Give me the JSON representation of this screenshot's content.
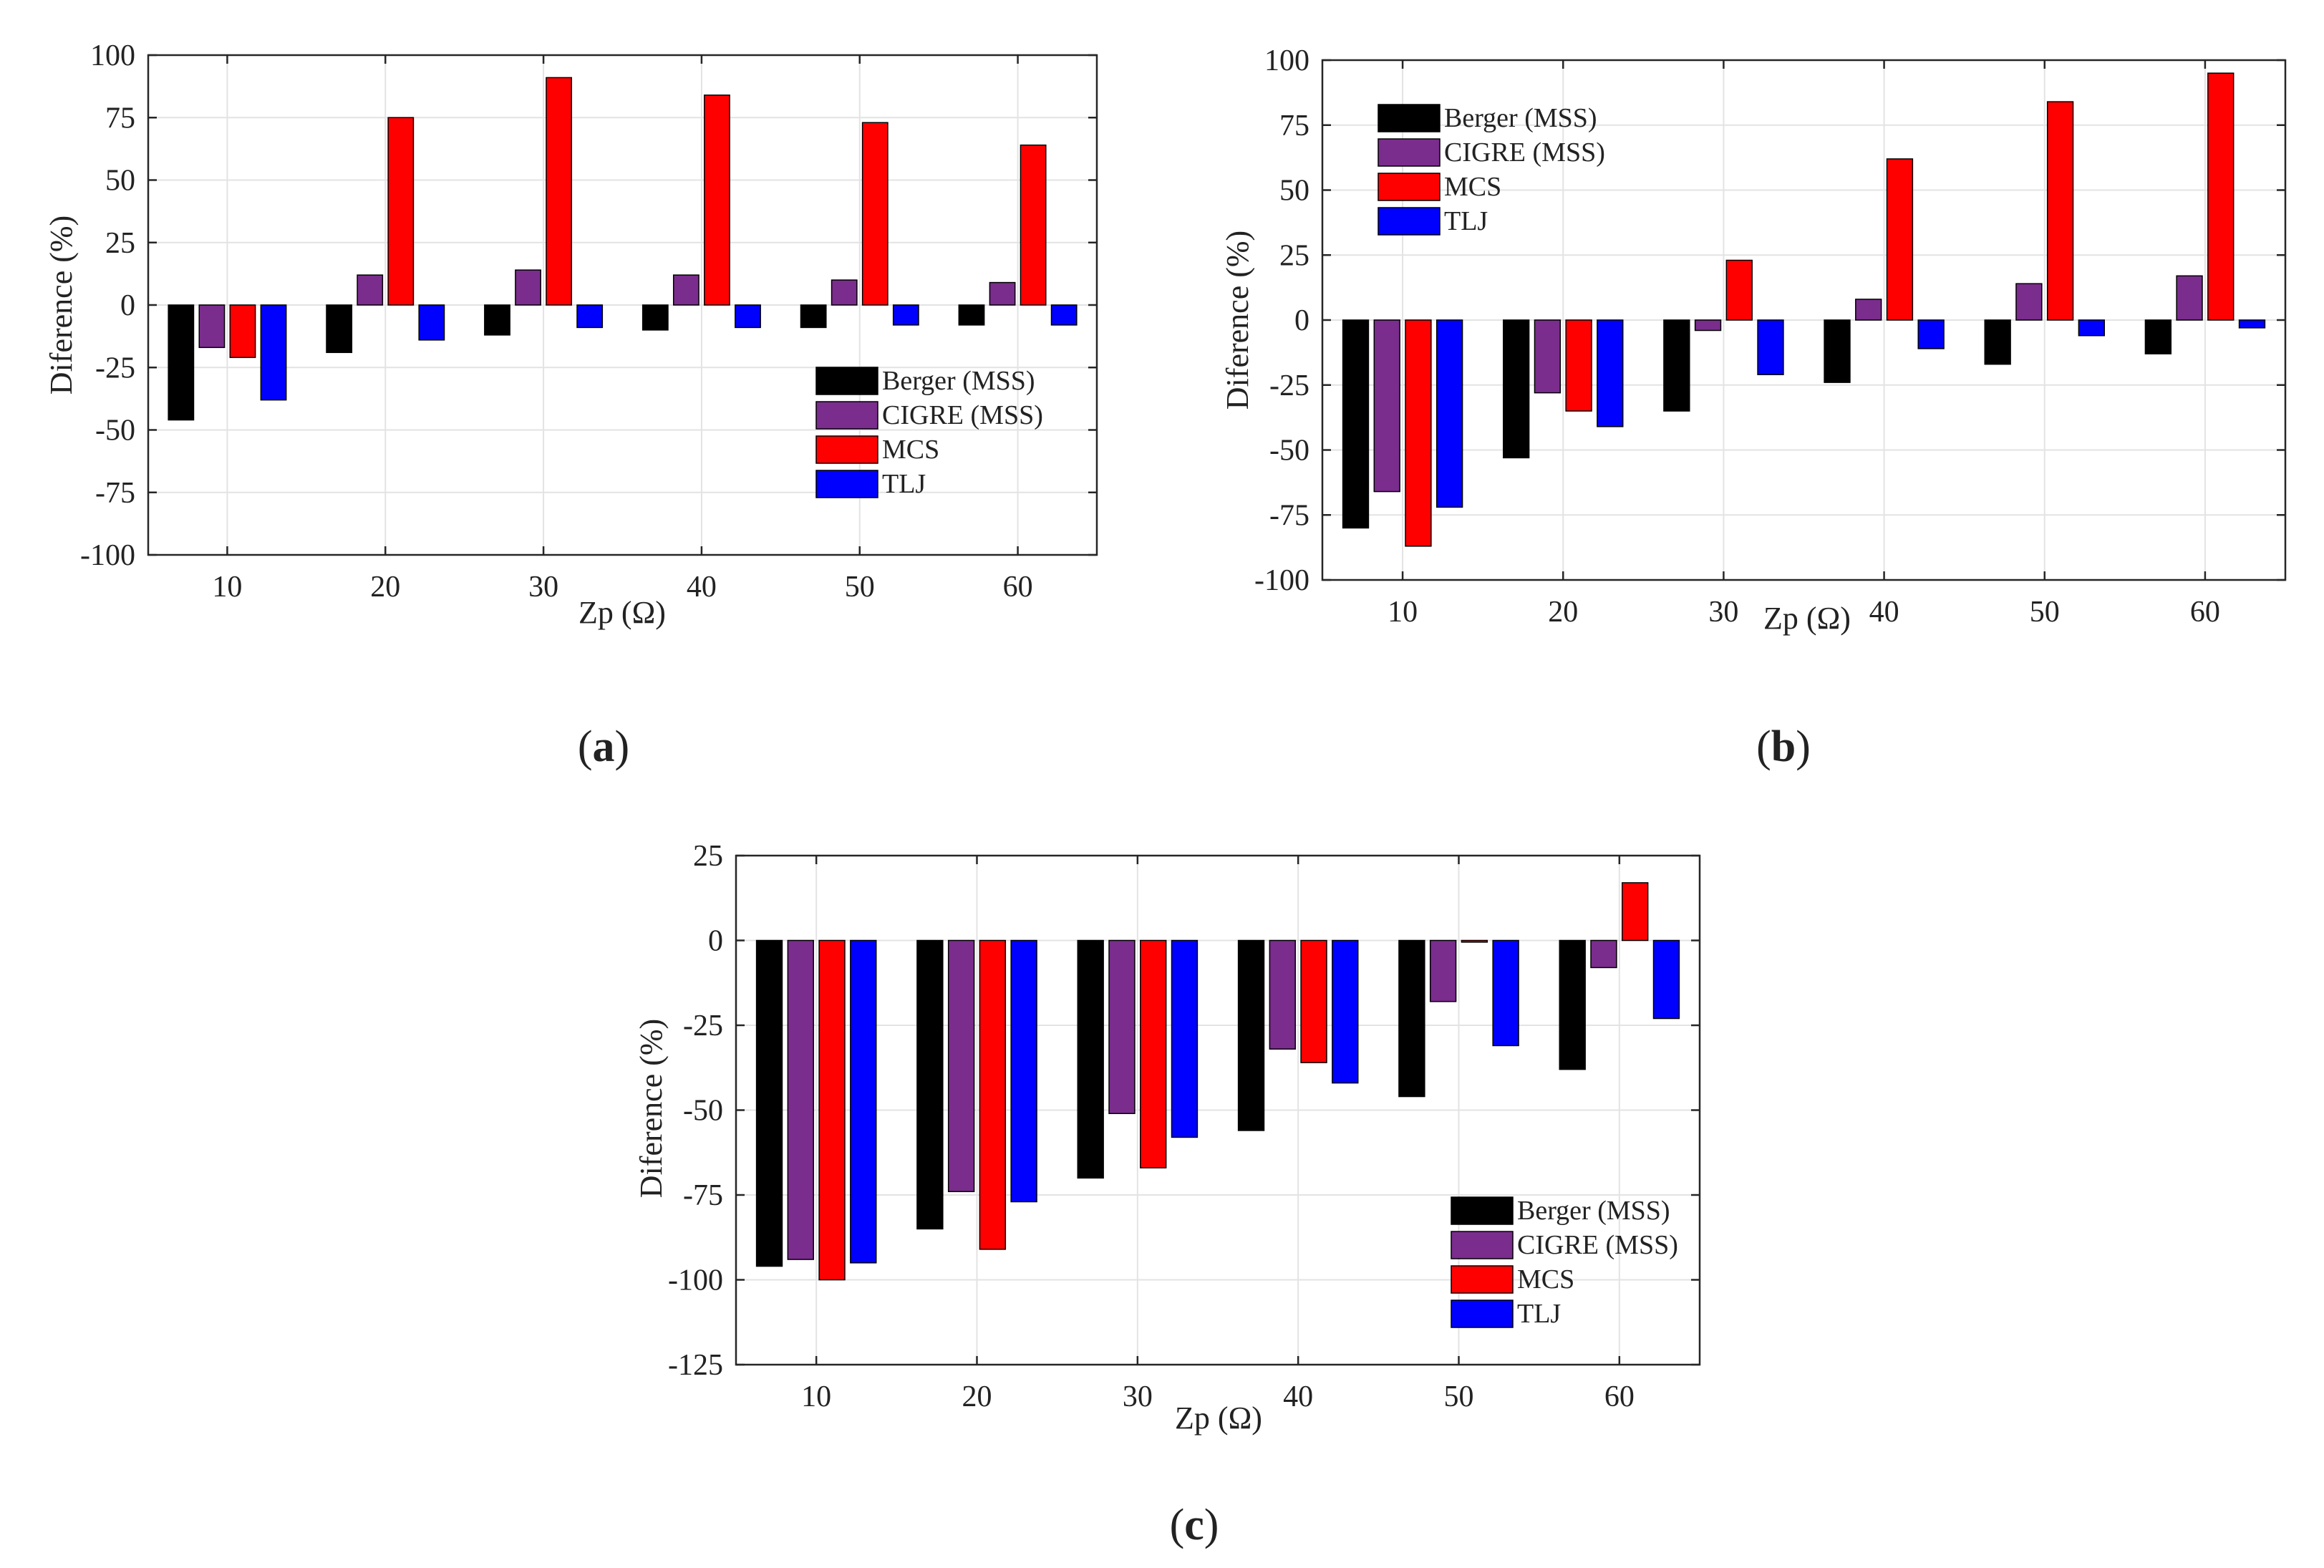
{
  "colors": {
    "Berger (MSS)": "#000000",
    "CIGRE (MSS)": "#7a2d8c",
    "MCS": "#ff0000",
    "TLJ": "#0000ff"
  },
  "chart_data": [
    {
      "type": "bar",
      "panel_label": "a",
      "xlabel": "Zp (Ω)",
      "ylabel": "Diference (%)",
      "categories": [
        "10",
        "20",
        "30",
        "40",
        "50",
        "60"
      ],
      "yticks": [
        100,
        75,
        50,
        25,
        0,
        -25,
        -50,
        -75,
        -100
      ],
      "ylim": [
        -100,
        100
      ],
      "grid": true,
      "legend_position": "lower-right",
      "series": [
        {
          "name": "Berger (MSS)",
          "values": [
            -46,
            -19,
            -12,
            -10,
            -9,
            -8
          ]
        },
        {
          "name": "CIGRE (MSS)",
          "values": [
            -17,
            12,
            14,
            12,
            10,
            9
          ]
        },
        {
          "name": "MCS",
          "values": [
            -21,
            75,
            91,
            84,
            73,
            64
          ]
        },
        {
          "name": "TLJ",
          "values": [
            -38,
            -14,
            -9,
            -9,
            -8,
            -8
          ]
        }
      ]
    },
    {
      "type": "bar",
      "panel_label": "b",
      "xlabel": "Zp (Ω)",
      "ylabel": "Diference (%)",
      "categories": [
        "10",
        "20",
        "30",
        "40",
        "50",
        "60"
      ],
      "yticks": [
        100,
        75,
        50,
        25,
        0,
        -25,
        -50,
        -75,
        -100
      ],
      "ylim": [
        -100,
        100
      ],
      "grid": true,
      "legend_position": "upper-left",
      "series": [
        {
          "name": "Berger (MSS)",
          "values": [
            -80,
            -53,
            -35,
            -24,
            -17,
            -13
          ]
        },
        {
          "name": "CIGRE (MSS)",
          "values": [
            -66,
            -28,
            -4,
            8,
            14,
            17
          ]
        },
        {
          "name": "MCS",
          "values": [
            -87,
            -35,
            23,
            62,
            84,
            95
          ]
        },
        {
          "name": "TLJ",
          "values": [
            -72,
            -41,
            -21,
            -11,
            -6,
            -3
          ]
        }
      ]
    },
    {
      "type": "bar",
      "panel_label": "c",
      "xlabel": "Zp (Ω)",
      "ylabel": "Diference (%)",
      "categories": [
        "10",
        "20",
        "30",
        "40",
        "50",
        "60"
      ],
      "yticks": [
        25,
        0,
        -25,
        -50,
        -75,
        -100,
        -125
      ],
      "ylim": [
        -125,
        25
      ],
      "grid": true,
      "legend_position": "lower-right",
      "series": [
        {
          "name": "Berger (MSS)",
          "values": [
            -96,
            -85,
            -70,
            -56,
            -46,
            -38
          ]
        },
        {
          "name": "CIGRE (MSS)",
          "values": [
            -94,
            -74,
            -51,
            -32,
            -18,
            -8
          ]
        },
        {
          "name": "MCS",
          "values": [
            -100,
            -91,
            -67,
            -36,
            -0.5,
            17
          ]
        },
        {
          "name": "TLJ",
          "values": [
            -95,
            -77,
            -58,
            -42,
            -31,
            -23
          ]
        }
      ]
    }
  ]
}
